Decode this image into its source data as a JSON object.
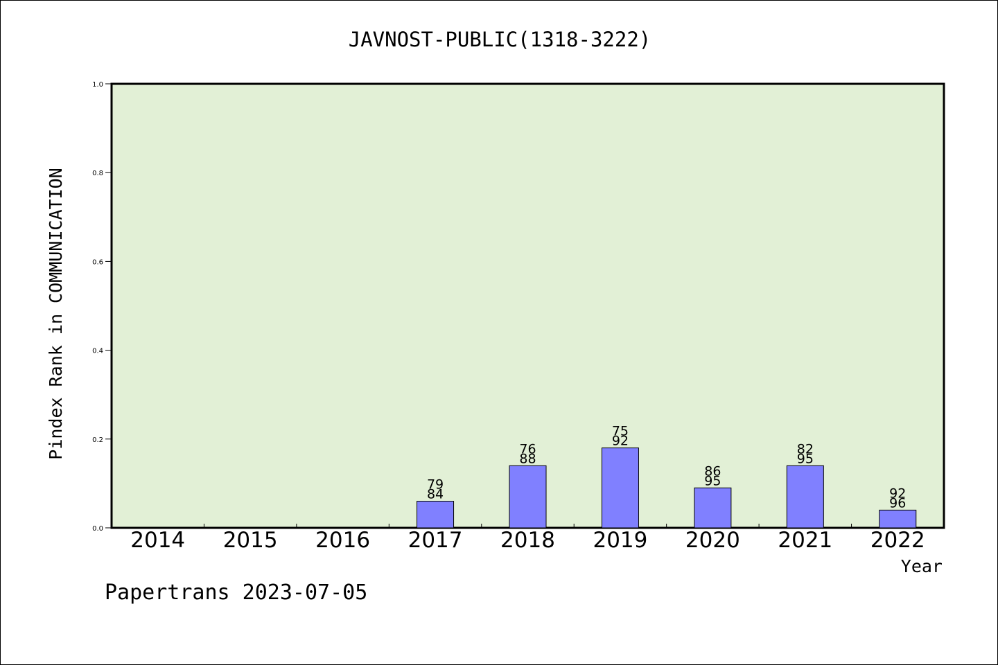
{
  "chart_data": {
    "type": "bar",
    "title": "JAVNOST-PUBLIC(1318-3222)",
    "xlabel": "Year",
    "ylabel": "Pindex Rank in COMMUNICATION",
    "footer": "Papertrans 2023-07-05",
    "categories": [
      "2014",
      "2015",
      "2016",
      "2017",
      "2018",
      "2019",
      "2020",
      "2021",
      "2022"
    ],
    "values": [
      0,
      0,
      0,
      0.06,
      0.14,
      0.18,
      0.09,
      0.14,
      0.04
    ],
    "labels_top": [
      "",
      "",
      "",
      "79",
      "76",
      "75",
      "86",
      "82",
      "92"
    ],
    "labels_bottom": [
      "",
      "",
      "",
      "84",
      "88",
      "92",
      "95",
      "95",
      "96"
    ],
    "ylim": [
      0,
      1.0
    ],
    "yticks": [
      "0.0",
      "0.2",
      "0.4",
      "0.6",
      "0.8",
      "1.0"
    ],
    "grid": false,
    "colors": {
      "plot_background": "#e2f0d6",
      "bar_fill": "#8080ff",
      "bar_stroke": "#000000"
    }
  }
}
